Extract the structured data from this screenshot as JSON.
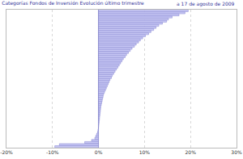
{
  "chart_data": {
    "type": "bar",
    "orientation": "horizontal",
    "title": "Categorías Fondos de Inversión Evolución último trimestre",
    "subtitle": "a 17 de agosto de 2009",
    "categories": [
      null,
      null,
      null,
      null,
      null,
      null,
      null,
      null,
      null,
      null,
      null,
      null,
      null,
      null,
      null,
      null,
      null,
      null,
      null,
      null,
      null,
      null,
      null,
      null,
      null,
      null,
      null,
      null,
      null,
      null,
      null,
      null,
      null,
      null,
      null,
      null,
      null,
      null,
      null,
      null,
      null,
      null,
      null,
      null,
      null,
      null,
      null,
      null,
      null,
      null,
      null,
      null,
      null,
      null,
      null,
      null,
      null,
      null,
      null,
      null,
      null,
      null,
      null,
      null,
      null,
      null
    ],
    "values": [
      19.5,
      18.8,
      17.5,
      16.0,
      15.2,
      14.8,
      13.9,
      13.1,
      12.5,
      12.0,
      11.4,
      10.9,
      10.2,
      9.6,
      9.1,
      8.7,
      8.2,
      7.8,
      7.3,
      6.9,
      6.5,
      6.1,
      5.8,
      5.4,
      5.1,
      4.8,
      4.5,
      4.2,
      3.9,
      3.6,
      3.3,
      3.0,
      2.8,
      2.5,
      2.3,
      2.1,
      1.9,
      1.7,
      1.5,
      1.3,
      1.1,
      1.0,
      0.9,
      0.8,
      0.7,
      0.6,
      0.5,
      0.45,
      0.4,
      0.35,
      0.3,
      0.25,
      0.2,
      0.15,
      0.1,
      0.05,
      0.0,
      -0.1,
      -0.2,
      -0.4,
      -0.6,
      -0.8,
      -1.5,
      -3.0,
      -8.5,
      -9.5
    ],
    "color": "#c8c8f4",
    "xlim": [
      -20,
      30
    ],
    "xticks": [
      {
        "value": -20,
        "label": "-20%"
      },
      {
        "value": -10,
        "label": "-10%"
      },
      {
        "value": 0,
        "label": "0%"
      },
      {
        "value": 10,
        "label": "10%"
      },
      {
        "value": 20,
        "label": "20%"
      },
      {
        "value": 30,
        "label": "30%"
      }
    ],
    "grid": true,
    "tick_labels": "x"
  }
}
